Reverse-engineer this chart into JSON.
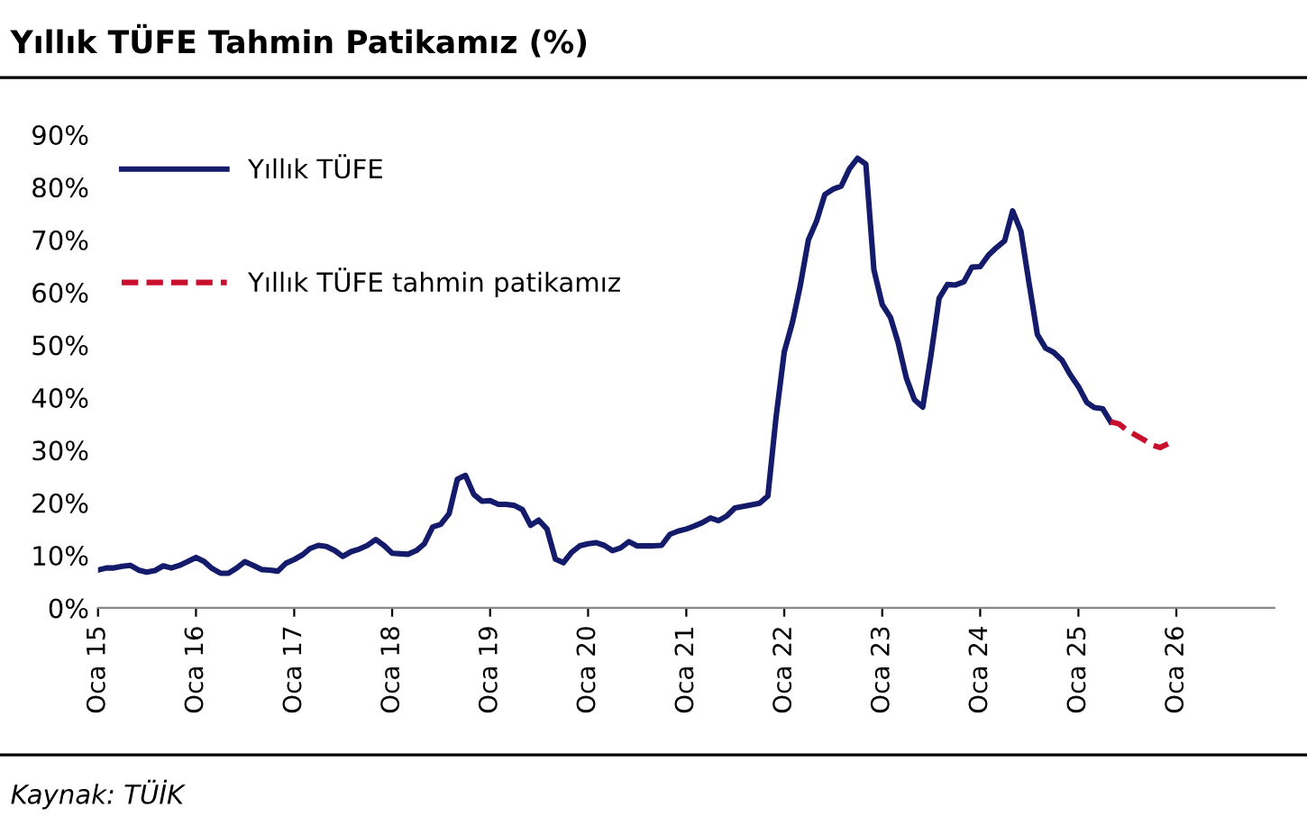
{
  "chart_data": {
    "type": "line",
    "title": "Yıllık TÜFE Tahmin Patikamız (%)",
    "annotations": [
      "Kaynak: TÜİK"
    ],
    "series": [
      {
        "name": "Yıllık TÜFE",
        "color": "#141b6b",
        "line_style": "solid",
        "x": [
          "2015-01",
          "2015-02",
          "2015-03",
          "2015-04",
          "2015-05",
          "2015-06",
          "2015-07",
          "2015-08",
          "2015-09",
          "2015-10",
          "2015-11",
          "2015-12",
          "2016-01",
          "2016-02",
          "2016-03",
          "2016-04",
          "2016-05",
          "2016-06",
          "2016-07",
          "2016-08",
          "2016-09",
          "2016-10",
          "2016-11",
          "2016-12",
          "2017-01",
          "2017-02",
          "2017-03",
          "2017-04",
          "2017-05",
          "2017-06",
          "2017-07",
          "2017-08",
          "2017-09",
          "2017-10",
          "2017-11",
          "2017-12",
          "2018-01",
          "2018-02",
          "2018-03",
          "2018-04",
          "2018-05",
          "2018-06",
          "2018-07",
          "2018-08",
          "2018-09",
          "2018-10",
          "2018-11",
          "2018-12",
          "2019-01",
          "2019-02",
          "2019-03",
          "2019-04",
          "2019-05",
          "2019-06",
          "2019-07",
          "2019-08",
          "2019-09",
          "2019-10",
          "2019-11",
          "2019-12",
          "2020-01",
          "2020-02",
          "2020-03",
          "2020-04",
          "2020-05",
          "2020-06",
          "2020-07",
          "2020-08",
          "2020-09",
          "2020-10",
          "2020-11",
          "2020-12",
          "2021-01",
          "2021-02",
          "2021-03",
          "2021-04",
          "2021-05",
          "2021-06",
          "2021-07",
          "2021-08",
          "2021-09",
          "2021-10",
          "2021-11",
          "2021-12",
          "2022-01",
          "2022-02",
          "2022-03",
          "2022-04",
          "2022-05",
          "2022-06",
          "2022-07",
          "2022-08",
          "2022-09",
          "2022-10",
          "2022-11",
          "2022-12",
          "2023-01",
          "2023-02",
          "2023-03",
          "2023-04",
          "2023-05",
          "2023-06",
          "2023-07",
          "2023-08",
          "2023-09",
          "2023-10",
          "2023-11",
          "2023-12",
          "2024-01",
          "2024-02",
          "2024-03",
          "2024-04",
          "2024-05",
          "2024-06",
          "2024-07",
          "2024-08",
          "2024-09",
          "2024-10",
          "2024-11",
          "2024-12",
          "2025-01",
          "2025-02",
          "2025-03",
          "2025-04",
          "2025-05"
        ],
        "values": [
          7.2,
          7.6,
          7.6,
          7.9,
          8.1,
          7.2,
          6.8,
          7.1,
          8.0,
          7.6,
          8.1,
          8.8,
          9.6,
          8.8,
          7.5,
          6.6,
          6.6,
          7.6,
          8.8,
          8.1,
          7.3,
          7.2,
          7.0,
          8.5,
          9.2,
          10.1,
          11.3,
          11.9,
          11.7,
          10.9,
          9.8,
          10.7,
          11.2,
          11.9,
          13.0,
          11.9,
          10.4,
          10.3,
          10.2,
          10.9,
          12.2,
          15.4,
          15.9,
          17.9,
          24.5,
          25.2,
          21.6,
          20.3,
          20.4,
          19.7,
          19.7,
          19.5,
          18.7,
          15.7,
          16.7,
          15.0,
          9.3,
          8.6,
          10.6,
          11.8,
          12.2,
          12.4,
          11.9,
          10.9,
          11.4,
          12.6,
          11.8,
          11.8,
          11.8,
          11.9,
          14.0,
          14.6,
          15.0,
          15.6,
          16.2,
          17.1,
          16.6,
          17.5,
          19.0,
          19.3,
          19.6,
          19.9,
          21.3,
          36.1,
          48.7,
          54.4,
          61.1,
          70.0,
          73.5,
          78.6,
          79.6,
          80.2,
          83.5,
          85.5,
          84.4,
          64.3,
          57.7,
          55.2,
          50.5,
          43.7,
          39.6,
          38.2,
          47.8,
          58.9,
          61.5,
          61.4,
          62.0,
          64.8,
          64.9,
          67.1,
          68.5,
          69.8,
          75.5,
          71.6,
          61.8,
          52.0,
          49.4,
          48.6,
          47.1,
          44.4,
          42.1,
          39.1,
          38.1,
          37.9,
          35.4
        ]
      },
      {
        "name": "Yıllık TÜFE tahmin patikamız",
        "color": "#c8102e",
        "line_style": "dashed",
        "x": [
          "2025-05",
          "2025-06",
          "2025-07",
          "2025-08",
          "2025-09",
          "2025-10",
          "2025-11",
          "2025-12"
        ],
        "values": [
          35.4,
          35.0,
          33.8,
          32.9,
          32.0,
          31.0,
          30.5,
          31.2
        ]
      }
    ],
    "xlim": [
      "2015-01",
      "2027-01"
    ],
    "xticks": [
      {
        "value": "2015-01",
        "label": "Oca 15"
      },
      {
        "value": "2016-01",
        "label": "Oca 16"
      },
      {
        "value": "2017-01",
        "label": "Oca 17"
      },
      {
        "value": "2018-01",
        "label": "Oca 18"
      },
      {
        "value": "2019-01",
        "label": "Oca 19"
      },
      {
        "value": "2020-01",
        "label": "Oca 20"
      },
      {
        "value": "2021-01",
        "label": "Oca 21"
      },
      {
        "value": "2022-01",
        "label": "Oca 22"
      },
      {
        "value": "2023-01",
        "label": "Oca 23"
      },
      {
        "value": "2024-01",
        "label": "Oca 24"
      },
      {
        "value": "2025-01",
        "label": "Oca 25"
      },
      {
        "value": "2026-01",
        "label": "Oca 26"
      }
    ],
    "ylim": [
      0,
      90
    ],
    "yticks": [
      {
        "value": 0,
        "label": "0%"
      },
      {
        "value": 10,
        "label": "10%"
      },
      {
        "value": 20,
        "label": "20%"
      },
      {
        "value": 30,
        "label": "30%"
      },
      {
        "value": 40,
        "label": "40%"
      },
      {
        "value": 50,
        "label": "50%"
      },
      {
        "value": 60,
        "label": "60%"
      },
      {
        "value": 70,
        "label": "70%"
      },
      {
        "value": 80,
        "label": "80%"
      },
      {
        "value": 90,
        "label": "90%"
      }
    ],
    "grid": false,
    "legend": "top left",
    "marker": "none"
  }
}
